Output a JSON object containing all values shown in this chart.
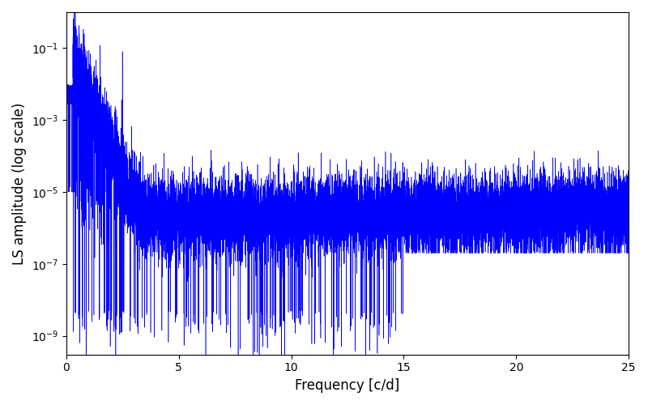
{
  "title": "",
  "xlabel": "Frequency [c/d]",
  "ylabel": "LS amplitude (log scale)",
  "xlim": [
    0,
    25
  ],
  "ylim": [
    3e-10,
    1.0
  ],
  "line_color": "#0000ff",
  "line_width": 0.4,
  "figsize": [
    8.0,
    5.0
  ],
  "dpi": 100,
  "n_points": 15000,
  "freq_max": 25.0,
  "seed": 7,
  "yticks": [
    1e-09,
    1e-07,
    1e-05,
    0.001,
    0.1
  ],
  "xticks": [
    0,
    5,
    10,
    15,
    20,
    25
  ]
}
